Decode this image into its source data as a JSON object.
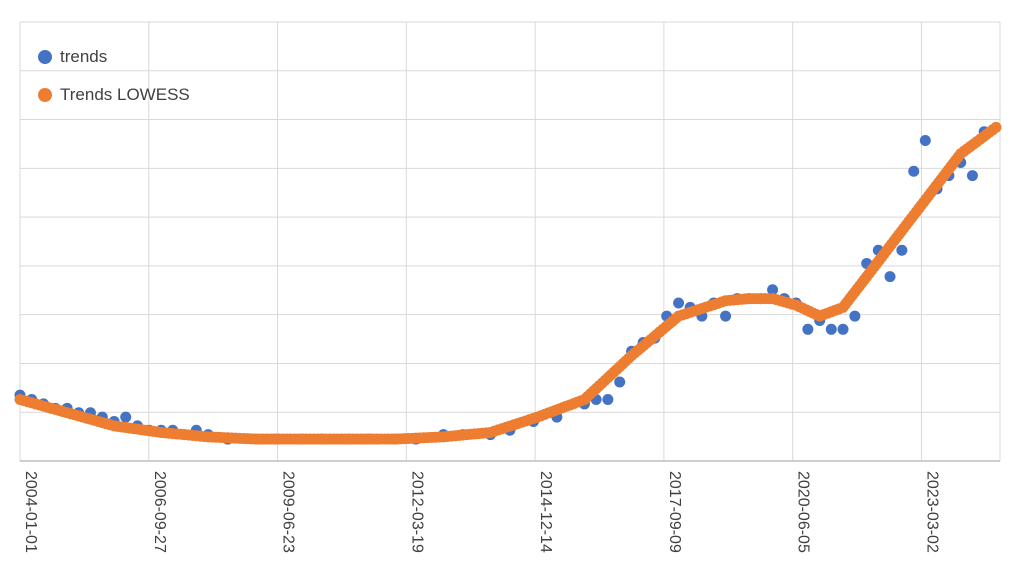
{
  "chart_data": {
    "type": "scatter",
    "title": "",
    "xlabel": "",
    "ylabel": "",
    "x_tick_labels": [
      "2004-01-01",
      "2006-09-27",
      "2009-06-23",
      "2012-03-19",
      "2014-12-14",
      "2017-09-09",
      "2020-06-05",
      "2023-03-02"
    ],
    "xlim": [
      "2004-01-01",
      "2024-11-01"
    ],
    "ylim": [
      0,
      100
    ],
    "y_tick_labels_visible": false,
    "grid": true,
    "legend": "top-left",
    "series": [
      {
        "name": "trends",
        "color": "#4472C4",
        "points": [
          [
            "2004-01-01",
            15
          ],
          [
            "2004-04-01",
            14
          ],
          [
            "2004-07-01",
            13
          ],
          [
            "2004-10-01",
            12
          ],
          [
            "2005-01-01",
            12
          ],
          [
            "2005-04-01",
            11
          ],
          [
            "2005-07-01",
            11
          ],
          [
            "2005-10-01",
            10
          ],
          [
            "2006-01-01",
            9
          ],
          [
            "2006-04-01",
            10
          ],
          [
            "2006-07-01",
            8
          ],
          [
            "2006-10-01",
            7
          ],
          [
            "2007-01-01",
            7
          ],
          [
            "2007-04-01",
            7
          ],
          [
            "2007-07-01",
            6
          ],
          [
            "2007-10-01",
            7
          ],
          [
            "2008-01-01",
            6
          ],
          [
            "2008-06-01",
            5
          ],
          [
            "2009-01-01",
            5
          ],
          [
            "2009-06-01",
            5
          ],
          [
            "2010-01-01",
            5
          ],
          [
            "2010-06-01",
            5
          ],
          [
            "2011-01-01",
            5
          ],
          [
            "2011-06-01",
            5
          ],
          [
            "2012-01-01",
            5
          ],
          [
            "2012-06-01",
            5
          ],
          [
            "2013-01-01",
            6
          ],
          [
            "2013-06-01",
            6
          ],
          [
            "2014-01-01",
            6
          ],
          [
            "2014-06-01",
            7
          ],
          [
            "2014-12-01",
            9
          ],
          [
            "2015-06-01",
            10
          ],
          [
            "2016-01-01",
            13
          ],
          [
            "2016-04-01",
            14
          ],
          [
            "2016-07-01",
            14
          ],
          [
            "2016-10-01",
            18
          ],
          [
            "2017-01-01",
            25
          ],
          [
            "2017-04-01",
            27
          ],
          [
            "2017-07-01",
            28
          ],
          [
            "2017-10-01",
            33
          ],
          [
            "2018-01-01",
            36
          ],
          [
            "2018-04-01",
            35
          ],
          [
            "2018-07-01",
            33
          ],
          [
            "2018-10-01",
            36
          ],
          [
            "2019-01-01",
            33
          ],
          [
            "2019-04-01",
            37
          ],
          [
            "2019-07-01",
            37
          ],
          [
            "2019-10-01",
            37
          ],
          [
            "2020-01-01",
            39
          ],
          [
            "2020-04-01",
            37
          ],
          [
            "2020-07-01",
            36
          ],
          [
            "2020-10-01",
            30
          ],
          [
            "2021-01-01",
            32
          ],
          [
            "2021-04-01",
            30
          ],
          [
            "2021-07-01",
            30
          ],
          [
            "2021-10-01",
            33
          ],
          [
            "2022-01-01",
            45
          ],
          [
            "2022-04-01",
            48
          ],
          [
            "2022-07-01",
            42
          ],
          [
            "2022-10-01",
            48
          ],
          [
            "2023-01-01",
            66
          ],
          [
            "2023-04-01",
            73
          ],
          [
            "2023-07-01",
            62
          ],
          [
            "2023-10-01",
            65
          ],
          [
            "2024-01-01",
            68
          ],
          [
            "2024-04-01",
            65
          ],
          [
            "2024-07-01",
            75
          ]
        ]
      },
      {
        "name": "Trends LOWESS",
        "color": "#ED7D31",
        "points": [
          [
            "2004-01-01",
            14
          ],
          [
            "2005-01-01",
            11
          ],
          [
            "2006-01-01",
            8
          ],
          [
            "2007-01-01",
            6.5
          ],
          [
            "2008-01-01",
            5.5
          ],
          [
            "2009-01-01",
            5
          ],
          [
            "2010-01-01",
            5
          ],
          [
            "2011-01-01",
            5
          ],
          [
            "2012-01-01",
            5
          ],
          [
            "2013-01-01",
            5.5
          ],
          [
            "2014-01-01",
            6.5
          ],
          [
            "2015-01-01",
            10
          ],
          [
            "2016-01-01",
            14
          ],
          [
            "2017-01-01",
            24
          ],
          [
            "2018-01-01",
            33
          ],
          [
            "2019-01-01",
            36.5
          ],
          [
            "2019-07-01",
            37
          ],
          [
            "2020-01-01",
            37
          ],
          [
            "2020-07-01",
            35.5
          ],
          [
            "2021-01-01",
            33
          ],
          [
            "2021-07-01",
            35
          ],
          [
            "2022-01-01",
            42
          ],
          [
            "2023-01-01",
            56
          ],
          [
            "2024-01-01",
            70
          ],
          [
            "2024-10-01",
            76
          ]
        ]
      }
    ]
  }
}
